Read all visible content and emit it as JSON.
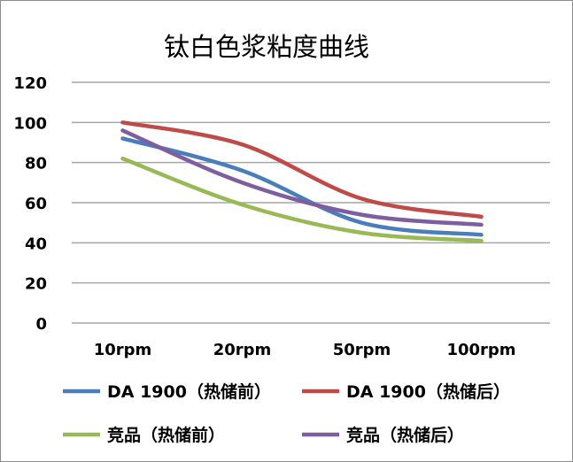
{
  "chart_data": {
    "type": "line",
    "title": "钛白色浆粘度曲线",
    "categories": [
      "10rpm",
      "20rpm",
      "50rpm",
      "100rpm"
    ],
    "ylim": [
      0,
      120
    ],
    "yticks": [
      0,
      20,
      40,
      60,
      80,
      100,
      120
    ],
    "grid": true,
    "smooth": true,
    "legend_position": "bottom",
    "series": [
      {
        "name": "DA 1900（热储前）",
        "color": "#4a7ebb",
        "values": [
          92,
          76,
          50,
          44
        ]
      },
      {
        "name": "DA 1900（热储后）",
        "color": "#be4b48",
        "values": [
          100,
          89,
          62,
          53
        ]
      },
      {
        "name": "竞品（热储前）",
        "color": "#98b954",
        "values": [
          82,
          59,
          45,
          41
        ]
      },
      {
        "name": "竞品（热储后）",
        "color": "#7d5fa0",
        "values": [
          96,
          70,
          54,
          49
        ]
      }
    ]
  }
}
